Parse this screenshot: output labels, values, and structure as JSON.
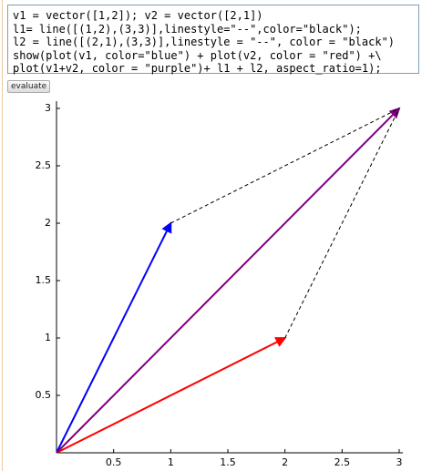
{
  "code": {
    "lines": [
      "v1 = vector([1,2]); v2 = vector([2,1])",
      "l1= line([(1,2),(3,3)],linestyle=\"--\",color=\"black\");",
      "l2 = line([(2,1),(3,3)],linestyle = \"--\", color = \"black\")",
      "show(plot(v1, color=\"blue\") + plot(v2, color = \"red\") +\\",
      "plot(v1+v2, color = \"purple\")+ l1 + l2, aspect_ratio=1);"
    ]
  },
  "button": {
    "label": "evaluate"
  },
  "chart_data": {
    "type": "vector",
    "series": [
      {
        "color": "#0000ff",
        "x": [
          0,
          1
        ],
        "values": [
          0,
          2
        ],
        "linestyle": "solid",
        "arrow": true
      },
      {
        "color": "#ff0000",
        "x": [
          0,
          2
        ],
        "values": [
          0,
          1
        ],
        "linestyle": "solid",
        "arrow": true
      },
      {
        "color": "#800080",
        "x": [
          0,
          3
        ],
        "values": [
          0,
          3
        ],
        "linestyle": "solid",
        "arrow": true
      },
      {
        "color": "#000000",
        "x": [
          1,
          3
        ],
        "values": [
          2,
          3
        ],
        "linestyle": "dashed",
        "arrow": false
      },
      {
        "color": "#000000",
        "x": [
          2,
          3
        ],
        "values": [
          1,
          3
        ],
        "linestyle": "dashed",
        "arrow": false
      }
    ],
    "xlim": [
      0,
      3
    ],
    "ylim": [
      0,
      3
    ],
    "xticks": [
      0.5,
      1,
      1.5,
      2,
      2.5,
      3
    ],
    "yticks": [
      0.5,
      1,
      1.5,
      2,
      2.5,
      3
    ]
  }
}
